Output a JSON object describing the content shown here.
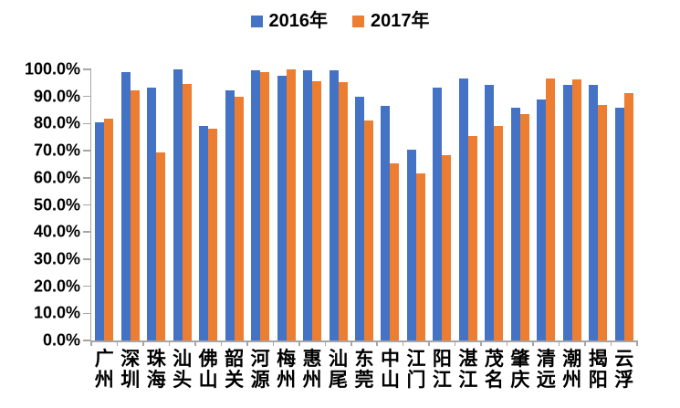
{
  "legend": {
    "items": [
      {
        "label": "2016年",
        "color": "#4472C4"
      },
      {
        "label": "2017年",
        "color": "#ED7D31"
      }
    ]
  },
  "chart_data": {
    "type": "bar",
    "title": "",
    "xlabel": "",
    "ylabel": "",
    "categories": [
      "广州",
      "深圳",
      "珠海",
      "汕头",
      "佛山",
      "韶关",
      "河源",
      "梅州",
      "惠州",
      "汕尾",
      "东莞",
      "中山",
      "江门",
      "阳江",
      "湛江",
      "茂名",
      "肇庆",
      "清远",
      "潮州",
      "揭阳",
      "云浮"
    ],
    "series": [
      {
        "name": "2016年",
        "color": "#4472C4",
        "values": [
          80.4,
          99.0,
          93.3,
          100.0,
          79.2,
          92.4,
          99.8,
          97.6,
          99.7,
          99.7,
          90.0,
          86.6,
          70.4,
          93.1,
          96.5,
          94.4,
          85.8,
          88.8,
          94.4,
          94.3,
          85.8
        ]
      },
      {
        "name": "2017年",
        "color": "#ED7D31",
        "values": [
          81.7,
          92.4,
          69.5,
          94.6,
          78.1,
          90.0,
          99.0,
          100.0,
          95.5,
          95.3,
          81.2,
          65.2,
          61.5,
          68.2,
          75.3,
          79.2,
          83.5,
          96.6,
          96.3,
          86.9,
          91.1
        ]
      }
    ],
    "ylim": [
      0,
      100
    ],
    "ytick_step": 10,
    "ytick_labels": [
      "0.0%",
      "10.0%",
      "20.0%",
      "30.0%",
      "40.0%",
      "50.0%",
      "60.0%",
      "70.0%",
      "80.0%",
      "90.0%",
      "100.0%"
    ],
    "grid": false,
    "legend_position": "top",
    "axis_color": "#a6a6a6"
  }
}
